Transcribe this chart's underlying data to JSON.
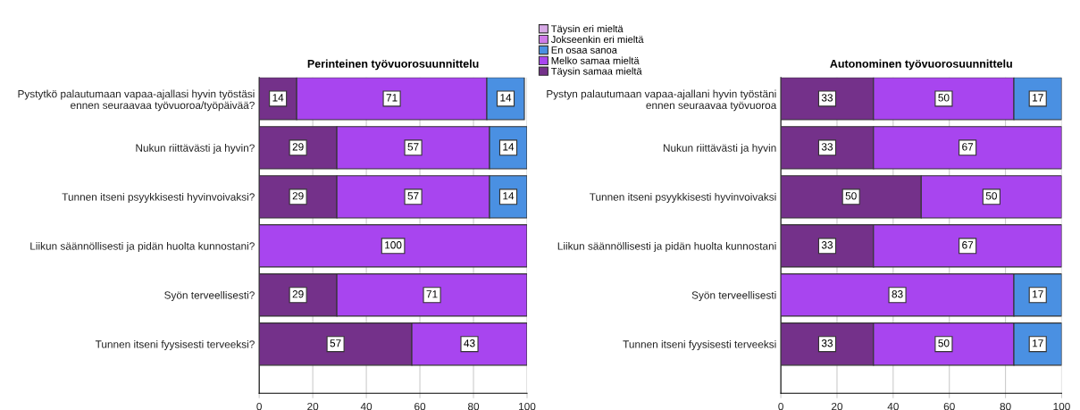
{
  "chart_data": [
    {
      "type": "bar",
      "orientation": "horizontal",
      "stacked": true,
      "title": "Perinteinen työvuorosuunnittelu",
      "categories": [
        "Pystytkö palautumaan vapaa-ajallasi hyvin työstäsi\nennen seuraavaa työvuoroa/työpäivää?",
        "Nukun riittävästi ja hyvin?",
        "Tunnen itseni psyykkisesti hyvinvoivaksi?",
        "Liikun säännöllisesti ja pidän huolta kunnostani?",
        "Syön terveellisesti?",
        "Tunnen itseni fyysisesti terveeksi?"
      ],
      "series": [
        {
          "name": "Täysin samaa mieltä",
          "color": "#74318a",
          "values": [
            14,
            29,
            29,
            null,
            29,
            57
          ]
        },
        {
          "name": "Melko samaa mieltä",
          "color": "#a845ef",
          "values": [
            71,
            57,
            57,
            100,
            71,
            43
          ]
        },
        {
          "name": "En osaa sanoa",
          "color": "#4a90e2",
          "values": [
            14,
            14,
            14,
            null,
            null,
            null
          ]
        },
        {
          "name": "Jokseenkin eri mieltä",
          "color": "#cf7be8",
          "values": [
            null,
            null,
            null,
            null,
            null,
            null
          ]
        },
        {
          "name": "Täysin eri mieltä",
          "color": "#d7a9e6",
          "values": [
            null,
            null,
            null,
            null,
            null,
            null
          ]
        }
      ],
      "xlim": [
        0,
        100
      ],
      "xticks": [
        0,
        20,
        40,
        60,
        80,
        100
      ],
      "grid": "x",
      "data_labels": true,
      "legend": "top right"
    },
    {
      "type": "bar",
      "orientation": "horizontal",
      "stacked": true,
      "title": "Autonominen työvuorosuunnittelu",
      "categories": [
        "Pystyn palautumaan vapaa-ajallani hyvin työstäni\nennen seuraavaa työvuoroa",
        "Nukun riittävästi ja hyvin",
        "Tunnen itseni psyykkisesti hyvinvoivaksi",
        "Liikun säännöllisesti ja pidän huolta kunnostani",
        "Syön terveellisesti",
        "Tunnen itseni fyysisesti terveeksi"
      ],
      "series": [
        {
          "color": "#74318a",
          "values": [
            33,
            33,
            50,
            33,
            null,
            33
          ]
        },
        {
          "color": "#a845ef",
          "values": [
            50,
            67,
            50,
            67,
            83,
            50
          ]
        },
        {
          "color": "#4a90e2",
          "values": [
            17,
            null,
            null,
            null,
            17,
            17
          ]
        }
      ],
      "xlim": [
        0,
        100
      ],
      "xticks": [
        0,
        20,
        40,
        60,
        80,
        100
      ],
      "grid": "x",
      "data_labels": true
    }
  ]
}
